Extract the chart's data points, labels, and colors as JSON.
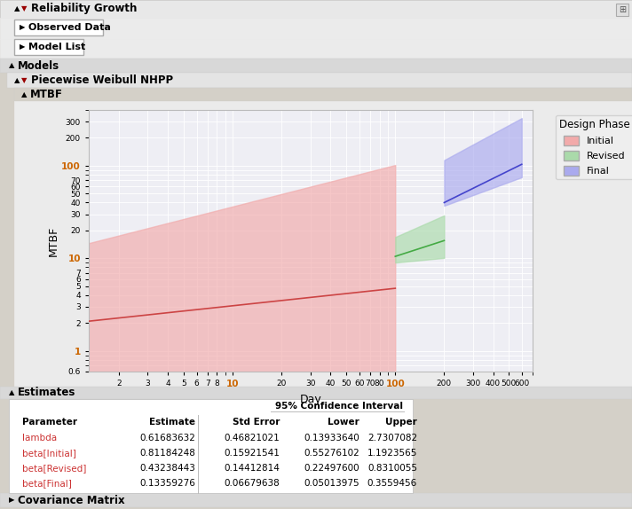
{
  "title_main": "Reliability Growth",
  "title_model": "Piecewise Weibull NHPP",
  "title_plot": "MTBF",
  "xlabel": "Day",
  "ylabel": "MTBF",
  "legend_title": "Design Phase",
  "legend_entries": [
    "Initial",
    "Revised",
    "Final"
  ],
  "c_init": "#F2AAAA",
  "c_rev": "#AADAAA",
  "c_fin": "#AAAAEE",
  "c_init_line": "#CC4444",
  "c_rev_line": "#44AA44",
  "c_fin_line": "#4444CC",
  "bg_outer": "#D4D0C8",
  "bg_panel": "#EBEBEB",
  "bg_plot": "#EEEEF4",
  "lambda": 0.61683632,
  "beta_initial": 0.81184248,
  "beta_revised": 0.43238443,
  "beta_final": 0.13359276,
  "lambda_lower": 0.1393364,
  "lambda_upper": 2.7307082,
  "beta_initial_lower": 0.55276102,
  "beta_initial_upper": 1.1923565,
  "beta_revised_lower": 0.224976,
  "beta_revised_upper": 0.8310055,
  "beta_final_lower": 0.05013975,
  "beta_final_upper": 0.3559456,
  "table_data": [
    [
      "lambda",
      "0.61683632",
      "0.46821021",
      "0.13933640",
      "2.7307082"
    ],
    [
      "beta[Initial]",
      "0.81184248",
      "0.15921541",
      "0.55276102",
      "1.1923565"
    ],
    [
      "beta[Revised]",
      "0.43238443",
      "0.14412814",
      "0.22497600",
      "0.8310055"
    ],
    [
      "beta[Final]",
      "0.13359276",
      "0.06679638",
      "0.05013975",
      "0.3559456"
    ]
  ],
  "table_headers": [
    "Parameter",
    "Estimate",
    "Std Error",
    "Lower",
    "Upper"
  ],
  "ci_header": "95% Confidence Interval"
}
